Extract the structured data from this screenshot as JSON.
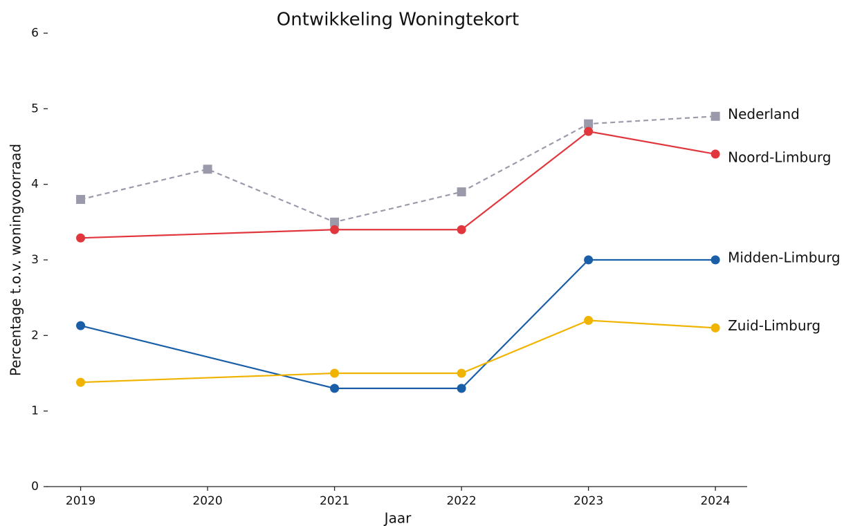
{
  "chart_data": {
    "type": "line",
    "title": "Ontwikkeling Woningtekort",
    "xlabel": "Jaar",
    "ylabel": "Percentage t.o.v. woningvoorraad",
    "xlim": [
      2018.73,
      2024.25
    ],
    "xticks": [
      2019,
      2020,
      2021,
      2022,
      2023,
      2024
    ],
    "ylim": [
      0,
      6
    ],
    "yticks": [
      0,
      1,
      2,
      3,
      4,
      5,
      6
    ],
    "grid": false,
    "series": [
      {
        "name": "Nederland",
        "color": "#9a9aaa",
        "dashed": true,
        "marker": "square",
        "x": [
          2019,
          2020,
          2021,
          2022,
          2023,
          2024
        ],
        "values": [
          3.8,
          4.2,
          3.5,
          3.9,
          4.8,
          4.9
        ]
      },
      {
        "name": "Noord-Limburg",
        "color": "#e0363c",
        "marker": "circle",
        "x": [
          2019,
          2021,
          2022,
          2023,
          2024
        ],
        "values": [
          3.29,
          3.4,
          3.4,
          4.7,
          4.4
        ]
      },
      {
        "name": "Midden-Limburg",
        "color": "#1a5ea8",
        "marker": "circle",
        "x": [
          2019,
          2021,
          2022,
          2023,
          2024
        ],
        "values": [
          2.13,
          1.3,
          1.3,
          3.0,
          3.0
        ]
      },
      {
        "name": "Zuid-Limburg",
        "color": "#f0b400",
        "marker": "circle",
        "x": [
          2019,
          2021,
          2022,
          2023,
          2024
        ],
        "values": [
          1.38,
          1.5,
          1.5,
          2.2,
          2.1
        ]
      }
    ]
  }
}
